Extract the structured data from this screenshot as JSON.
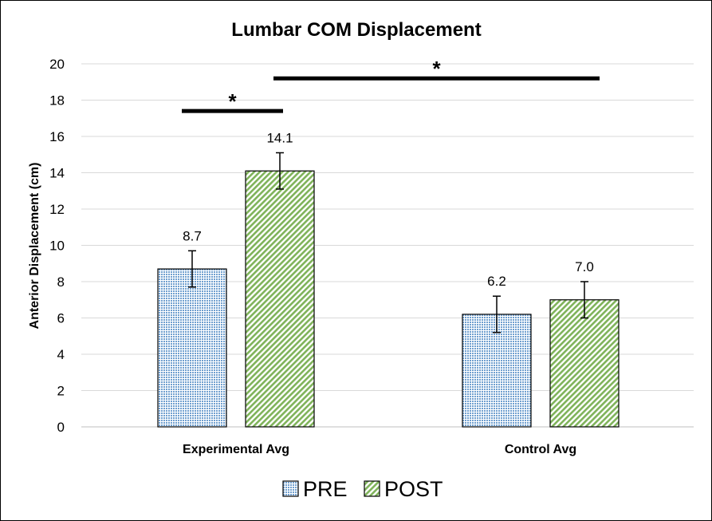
{
  "chart_data": {
    "type": "bar",
    "title": "Lumbar COM Displacement",
    "xlabel": "",
    "ylabel": "Anterior Displacement (cm)",
    "ylim": [
      0,
      20
    ],
    "yticks": [
      0,
      2,
      4,
      6,
      8,
      10,
      12,
      14,
      16,
      18,
      20
    ],
    "ytick_labels": [
      "0",
      "2",
      "4",
      "6",
      "8",
      "10",
      "12",
      "14",
      "16",
      "18",
      "20"
    ],
    "grid": true,
    "legend_position": "bottom",
    "categories": [
      "Experimental Avg",
      "Control Avg"
    ],
    "series": [
      {
        "name": "PRE",
        "values": [
          8.7,
          6.2
        ],
        "labels": [
          "8.7",
          "6.2"
        ],
        "error": [
          1.0,
          1.0
        ],
        "color": "#9dc3e6",
        "pattern": "dotted-grid"
      },
      {
        "name": "POST",
        "values": [
          14.1,
          7.0
        ],
        "labels": [
          "14.1",
          "7.0"
        ],
        "error": [
          1.0,
          1.0
        ],
        "color": "#a9d18e",
        "pattern": "diagonal-stripes"
      }
    ],
    "annotations": [
      {
        "text": "*",
        "from": "Experimental Avg PRE",
        "to": "Experimental Avg POST",
        "y": 17.4
      },
      {
        "text": "*",
        "from": "Experimental Avg POST",
        "to": "Control Avg POST",
        "y": 19.2
      }
    ]
  }
}
